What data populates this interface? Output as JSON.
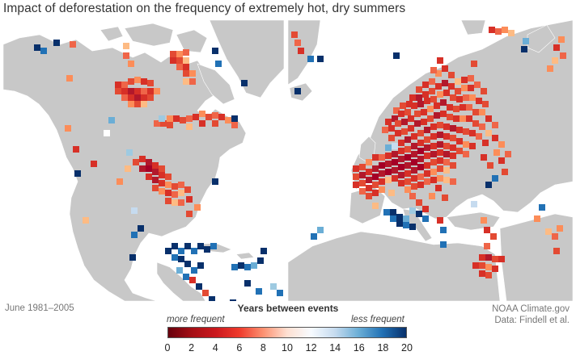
{
  "title": "Impact of deforestation on the frequency of extremely hot, dry summers",
  "period": "June 1981–2005",
  "credit": {
    "line1": "NOAA Climate.gov",
    "line2": "Data: Findell et al."
  },
  "legend": {
    "title": "Years between events",
    "left_label": "more frequent",
    "right_label": "less frequent",
    "ticks": [
      "0",
      "2",
      "4",
      "6",
      "8",
      "10",
      "12",
      "14",
      "16",
      "18",
      "20"
    ],
    "range": [
      0,
      20
    ],
    "colors": [
      "#67000d",
      "#a50f15",
      "#cb181d",
      "#ef3b2c",
      "#fc9272",
      "#fee0d2",
      "#f7fbff",
      "#c6dbef",
      "#6baed6",
      "#2171b5",
      "#08306b"
    ]
  },
  "colors": {
    "land": "#c8c8c8",
    "ocean": "#ffffff",
    "border": "#ffffff"
  }
}
